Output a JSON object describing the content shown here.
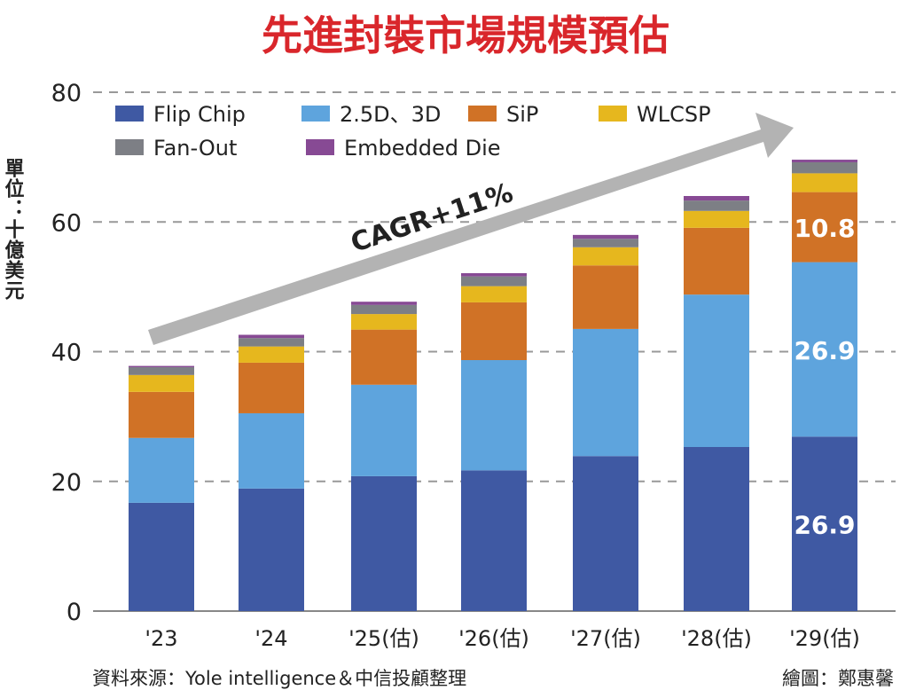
{
  "chart_data": {
    "type": "bar",
    "stacked": true,
    "title": "先進封裝市場規模預估",
    "ylabel": "單位：十億美元",
    "xlabel": "",
    "ylim": [
      0,
      80
    ],
    "yticks": [
      "0",
      "20",
      "40",
      "60",
      "80"
    ],
    "grid": true,
    "legend_position": "top-left",
    "categories": [
      "'23",
      "'24",
      "'25(估)",
      "'26(估)",
      "'27(估)",
      "'28(估)",
      "'29(估)"
    ],
    "series": [
      {
        "name": "Flip Chip",
        "color": "#3f59a3",
        "values": [
          16.7,
          18.9,
          20.8,
          21.7,
          23.9,
          25.3,
          26.9
        ]
      },
      {
        "name": "2.5D、3D",
        "color": "#5ea4dd",
        "values": [
          10.0,
          11.6,
          14.1,
          17.0,
          19.6,
          23.5,
          26.9
        ]
      },
      {
        "name": "SiP",
        "color": "#d07226",
        "values": [
          7.1,
          7.8,
          8.5,
          8.9,
          9.8,
          10.3,
          10.8
        ]
      },
      {
        "name": "WLCSP",
        "color": "#e6b71e",
        "values": [
          2.6,
          2.5,
          2.4,
          2.5,
          2.8,
          2.6,
          2.9
        ]
      },
      {
        "name": "Fan-Out",
        "color": "#7d7f85",
        "values": [
          1.2,
          1.3,
          1.4,
          1.5,
          1.3,
          1.6,
          1.7
        ]
      },
      {
        "name": "Embedded Die",
        "color": "#874a94",
        "values": [
          0.2,
          0.5,
          0.5,
          0.5,
          0.6,
          0.7,
          0.4
        ]
      }
    ],
    "data_labels": [
      {
        "category": "'29(估)",
        "series": "Flip Chip",
        "text": "26.9"
      },
      {
        "category": "'29(估)",
        "series": "2.5D、3D",
        "text": "26.9"
      },
      {
        "category": "'29(估)",
        "series": "SiP",
        "text": "10.8"
      }
    ],
    "annotation": "CAGR+11%",
    "title_color": "#d9262b",
    "arrow_color": "#b3b3b3"
  },
  "footer": {
    "source": "資料來源：Yole intelligence＆中信投顧整理",
    "credit": "繪圖：鄭惠馨"
  }
}
